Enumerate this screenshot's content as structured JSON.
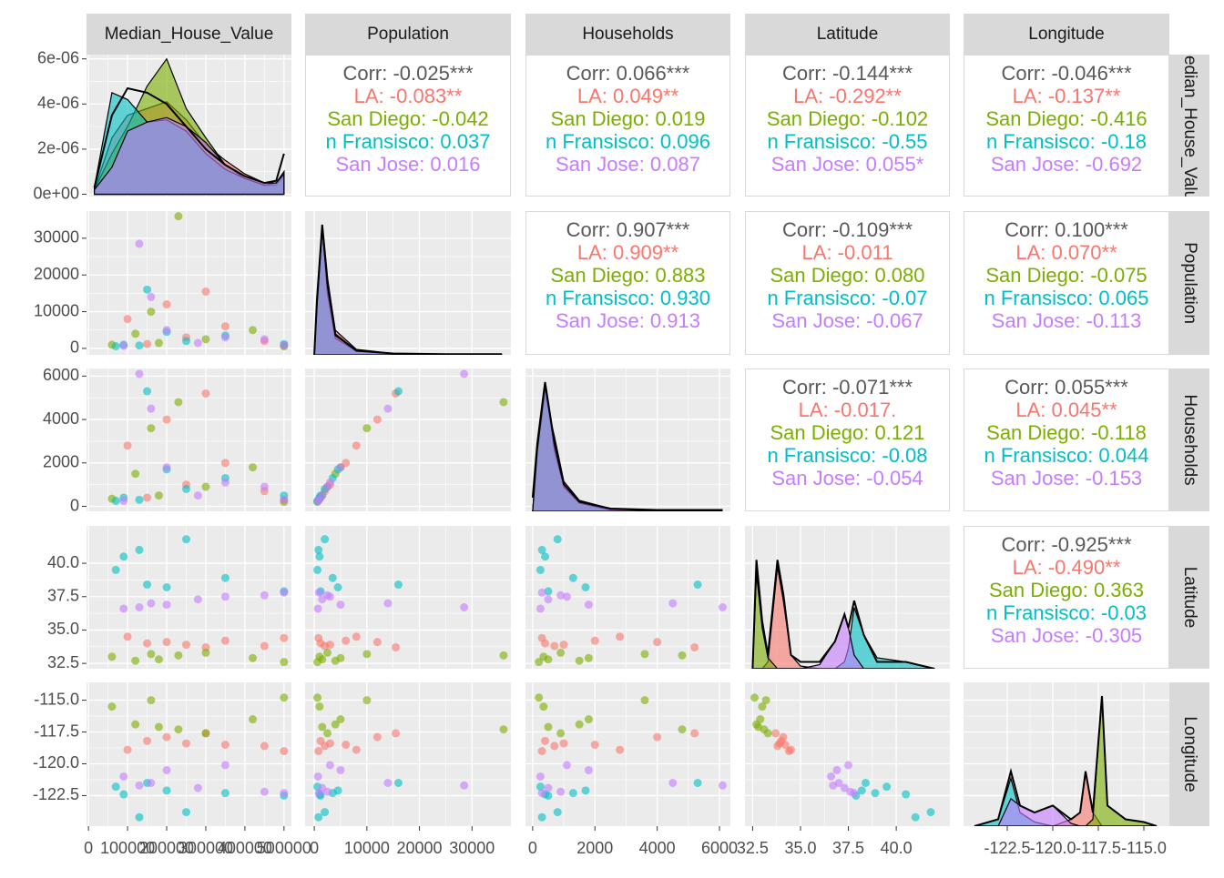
{
  "chart_data": {
    "type": "pairs",
    "variables": [
      {
        "name": "Median_House_Value",
        "lim": [
          -5000,
          519000
        ],
        "ticks": [
          0,
          100000,
          200000,
          300000,
          400000,
          500000
        ]
      },
      {
        "name": "Population",
        "lim": [
          -1750,
          37400
        ],
        "ticks": [
          0,
          10000,
          20000,
          30000
        ]
      },
      {
        "name": "Households",
        "lim": [
          -230,
          6350
        ],
        "ticks": [
          0,
          2000,
          4000,
          6000
        ]
      },
      {
        "name": "Latitude",
        "lim": [
          32.1,
          42.8
        ],
        "ticks": [
          32.5,
          {
            "value": 35,
            "label": "35.0"
          },
          37.5,
          {
            "value": 40,
            "label": "40.0"
          }
        ]
      },
      {
        "name": "Longitude",
        "lim": [
          -124.9,
          -113.6
        ],
        "ticks": [
          -122.5,
          {
            "value": -120,
            "label": "-120.0"
          },
          -117.5,
          {
            "value": -115,
            "label": "-115.0"
          }
        ]
      }
    ],
    "groups": [
      {
        "name": "LA",
        "color": "#F8766D",
        "records": [
          [
            150000,
            1200,
            400,
            34.0,
            -118.2
          ],
          [
            250000,
            3000,
            1000,
            33.9,
            -118.4
          ],
          [
            350000,
            6000,
            2000,
            34.2,
            -118.5
          ],
          [
            200000,
            12000,
            4000,
            34.1,
            -117.9
          ],
          [
            450000,
            2000,
            700,
            33.8,
            -118.6
          ],
          [
            500000,
            800,
            300,
            34.4,
            -119.0
          ],
          [
            100000,
            8000,
            2800,
            34.5,
            -118.9
          ],
          [
            300000,
            15500,
            5200,
            33.7,
            -117.6
          ]
        ]
      },
      {
        "name": "San Diego",
        "color": "#7CAE00",
        "records": [
          [
            180000,
            1500,
            500,
            32.8,
            -117.1
          ],
          [
            230000,
            36000,
            4800,
            33.1,
            -117.3
          ],
          [
            120000,
            4000,
            1500,
            32.7,
            -116.9
          ],
          [
            300000,
            2500,
            900,
            33.3,
            -117.6
          ],
          [
            60000,
            1000,
            350,
            33.0,
            -115.5
          ],
          [
            420000,
            5000,
            1800,
            32.9,
            -116.5
          ],
          [
            500000,
            600,
            200,
            32.6,
            -114.8
          ],
          [
            160000,
            10000,
            3600,
            33.2,
            -115.0
          ]
        ]
      },
      {
        "name": "San Fransisco",
        "color": "#00BFC4",
        "records": [
          [
            90000,
            1000,
            400,
            40.5,
            -122.4
          ],
          [
            150000,
            16000,
            5300,
            38.4,
            -121.5
          ],
          [
            250000,
            2000,
            800,
            41.8,
            -123.8
          ],
          [
            350000,
            3500,
            1300,
            38.9,
            -122.3
          ],
          [
            500000,
            1200,
            500,
            37.9,
            -122.5
          ],
          [
            70000,
            600,
            250,
            39.5,
            -121.8
          ],
          [
            200000,
            4500,
            1700,
            38.2,
            -122.1
          ],
          [
            130000,
            800,
            300,
            41.0,
            -124.2
          ]
        ]
      },
      {
        "name": "San Jose",
        "color": "#C77CFF",
        "records": [
          [
            280000,
            1500,
            500,
            37.3,
            -121.9
          ],
          [
            450000,
            2500,
            900,
            37.6,
            -122.2
          ],
          [
            130000,
            28500,
            6100,
            36.7,
            -121.7
          ],
          [
            200000,
            5000,
            1800,
            36.9,
            -120.5
          ],
          [
            500000,
            900,
            300,
            37.8,
            -122.3
          ],
          [
            350000,
            3000,
            1100,
            37.5,
            -120.1
          ],
          [
            160000,
            14000,
            4500,
            37.0,
            -121.5
          ],
          [
            90000,
            700,
            250,
            36.6,
            -121.0
          ]
        ]
      }
    ],
    "diagonals": [
      {
        "ylim": [
          -1e-07,
          6.19e-06
        ],
        "yticks": [
          {
            "value": 0,
            "label": "0e+00"
          },
          {
            "value": 2e-06,
            "label": "2e-06"
          },
          {
            "value": 4e-06,
            "label": "4e-06"
          },
          {
            "value": 6e-06,
            "label": "6e-06"
          }
        ],
        "x": [
          15000,
          60000,
          100000,
          150000,
          200000,
          250000,
          300000,
          350000,
          400000,
          450000,
          480000,
          500000
        ],
        "groups": [
          [
            2e-07,
            2.5e-06,
            3.5e-06,
            3.8e-06,
            4.1e-06,
            3.3e-06,
            2.2e-06,
            1.5e-06,
            9e-07,
            5e-07,
            5e-07,
            1e-06
          ],
          [
            2e-07,
            1.8e-06,
            3e-06,
            4.8e-06,
            6e-06,
            3.8e-06,
            2.5e-06,
            1.3e-06,
            7e-07,
            4e-07,
            4e-07,
            8e-07
          ],
          [
            3e-07,
            4.5e-06,
            4.2e-06,
            3.2e-06,
            3.3e-06,
            2.8e-06,
            1.8e-06,
            1.1e-06,
            7e-07,
            4e-07,
            5e-07,
            1e-06
          ],
          [
            2e-07,
            1.2e-06,
            2.8e-06,
            3.2e-06,
            3.4e-06,
            3e-06,
            2.3e-06,
            1.3e-06,
            8e-07,
            5e-07,
            5e-07,
            9e-07
          ]
        ],
        "total": [
          3e-07,
          3.5e-06,
          4.7e-06,
          4.5e-06,
          4e-06,
          3e-06,
          2e-06,
          1.3e-06,
          8e-07,
          5e-07,
          6e-07,
          1.8e-06
        ]
      },
      {
        "ylim": [
          0,
          1.05
        ],
        "x": [
          0,
          500,
          1500,
          2500,
          4000,
          8000,
          15000,
          25000,
          35700
        ],
        "groups": [
          [
            0,
            0.3,
            0.85,
            0.55,
            0.18,
            0.04,
            0.01,
            0,
            0
          ],
          [
            0,
            0.35,
            0.9,
            0.5,
            0.15,
            0.03,
            0.01,
            0,
            0
          ],
          [
            0,
            0.4,
            0.95,
            0.45,
            0.12,
            0.03,
            0.01,
            0,
            0
          ],
          [
            0,
            0.35,
            0.92,
            0.5,
            0.14,
            0.03,
            0.01,
            0,
            0
          ]
        ],
        "total": [
          0,
          0.4,
          0.95,
          0.55,
          0.15,
          0.03,
          0.01,
          0.005,
          0.005
        ]
      },
      {
        "ylim": [
          0,
          1.05
        ],
        "x": [
          0,
          150,
          400,
          700,
          1000,
          1500,
          2500,
          4000,
          6100
        ],
        "groups": [
          [
            0,
            0.4,
            0.85,
            0.55,
            0.22,
            0.08,
            0.02,
            0,
            0
          ],
          [
            0,
            0.45,
            0.9,
            0.5,
            0.2,
            0.07,
            0.02,
            0,
            0
          ],
          [
            0,
            0.5,
            0.95,
            0.45,
            0.18,
            0.06,
            0.01,
            0,
            0
          ],
          [
            0,
            0.45,
            0.92,
            0.5,
            0.2,
            0.07,
            0.02,
            0,
            0
          ]
        ],
        "total": [
          0.1,
          0.5,
          0.95,
          0.5,
          0.2,
          0.07,
          0.02,
          0.01,
          0.01
        ]
      },
      {
        "ylim": [
          0,
          1.05
        ],
        "x": [
          32.5,
          32.7,
          33.0,
          33.3,
          33.8,
          34.1,
          34.5,
          35,
          36,
          36.8,
          37.3,
          37.5,
          37.8,
          38.3,
          39,
          40.5,
          42
        ],
        "groups": [
          [
            0,
            0,
            0,
            0.05,
            0.75,
            0.5,
            0.1,
            0.02,
            0,
            0,
            0,
            0,
            0,
            0,
            0,
            0,
            0
          ],
          [
            0,
            0.7,
            0.3,
            0.08,
            0,
            0,
            0,
            0,
            0,
            0,
            0,
            0,
            0,
            0,
            0,
            0,
            0
          ],
          [
            0,
            0,
            0,
            0,
            0,
            0,
            0,
            0,
            0,
            0,
            0.05,
            0.15,
            0.45,
            0.25,
            0.08,
            0.05,
            0
          ],
          [
            0,
            0,
            0,
            0,
            0,
            0,
            0,
            0,
            0.03,
            0.2,
            0.4,
            0.3,
            0.1,
            0,
            0,
            0,
            0
          ]
        ],
        "total": [
          0,
          0.8,
          0.35,
          0.1,
          0.8,
          0.55,
          0.1,
          0.05,
          0.05,
          0.2,
          0.4,
          0.3,
          0.5,
          0.25,
          0.05,
          0.05,
          0
        ]
      },
      {
        "ylim": [
          0,
          1.05
        ],
        "x": [
          -124.3,
          -123,
          -122.3,
          -121.8,
          -121,
          -120,
          -119,
          -118.5,
          -118.2,
          -117.8,
          -117.3,
          -117,
          -116,
          -115,
          -114.3
        ],
        "groups": [
          [
            0,
            0,
            0,
            0,
            0,
            0,
            0.05,
            0.1,
            0.4,
            0.1,
            0,
            0,
            0,
            0,
            0
          ],
          [
            0,
            0,
            0,
            0,
            0,
            0,
            0,
            0,
            0,
            0.05,
            0.95,
            0.15,
            0.05,
            0.03,
            0
          ],
          [
            0,
            0.05,
            0.35,
            0.1,
            0.03,
            0,
            0,
            0,
            0,
            0,
            0,
            0,
            0,
            0,
            0
          ],
          [
            0,
            0,
            0.2,
            0.15,
            0.1,
            0.15,
            0.02,
            0,
            0,
            0,
            0,
            0,
            0,
            0,
            0
          ]
        ],
        "total": [
          0,
          0.05,
          0.4,
          0.15,
          0.1,
          0.15,
          0.05,
          0.1,
          0.4,
          0.1,
          0.95,
          0.15,
          0.05,
          0.03,
          0
        ]
      }
    ],
    "correlations": [
      [
        [
          "Corr: -0.025***",
          "LA: -0.083**",
          "San Diego: -0.042",
          "n Fransisco: 0.037",
          "San Jose: 0.016"
        ],
        [
          "Corr: 0.066***",
          "LA: 0.049**",
          "San Diego: 0.019",
          "n Fransisco: 0.096",
          "San Jose: 0.087"
        ],
        [
          "Corr: -0.144***",
          "LA: -0.292**",
          "San Diego: -0.102",
          "n Fransisco: -0.55",
          "San Jose: 0.055*"
        ],
        [
          "Corr: -0.046***",
          "LA: -0.137**",
          "San Diego: -0.416",
          "n Fransisco: -0.18",
          "San Jose: -0.692"
        ]
      ],
      [
        [
          "Corr: 0.907***",
          "LA: 0.909**",
          "San Diego: 0.883",
          "n Fransisco: 0.930",
          "San Jose: 0.913"
        ],
        [
          "Corr: -0.109***",
          "LA: -0.011",
          "San Diego: 0.080",
          "n Fransisco: -0.07",
          "San Jose: -0.067"
        ],
        [
          "Corr: 0.100***",
          "LA: 0.070**",
          "San Diego: -0.075",
          "n Fransisco: 0.065",
          "San Jose: -0.113"
        ]
      ],
      [
        [
          "Corr: -0.071***",
          "LA: -0.017.",
          "San Diego: 0.121",
          "n Fransisco: -0.08",
          "San Jose: -0.054"
        ],
        [
          "Corr: 0.055***",
          "LA: 0.045**",
          "San Diego: -0.118",
          "n Fransisco: 0.044",
          "San Jose: -0.153"
        ]
      ],
      [
        [
          "Corr: -0.925***",
          "LA: -0.490**",
          "San Diego: 0.363",
          "n Fransisco: -0.03",
          "San Jose: -0.305"
        ]
      ]
    ],
    "grid": true
  }
}
